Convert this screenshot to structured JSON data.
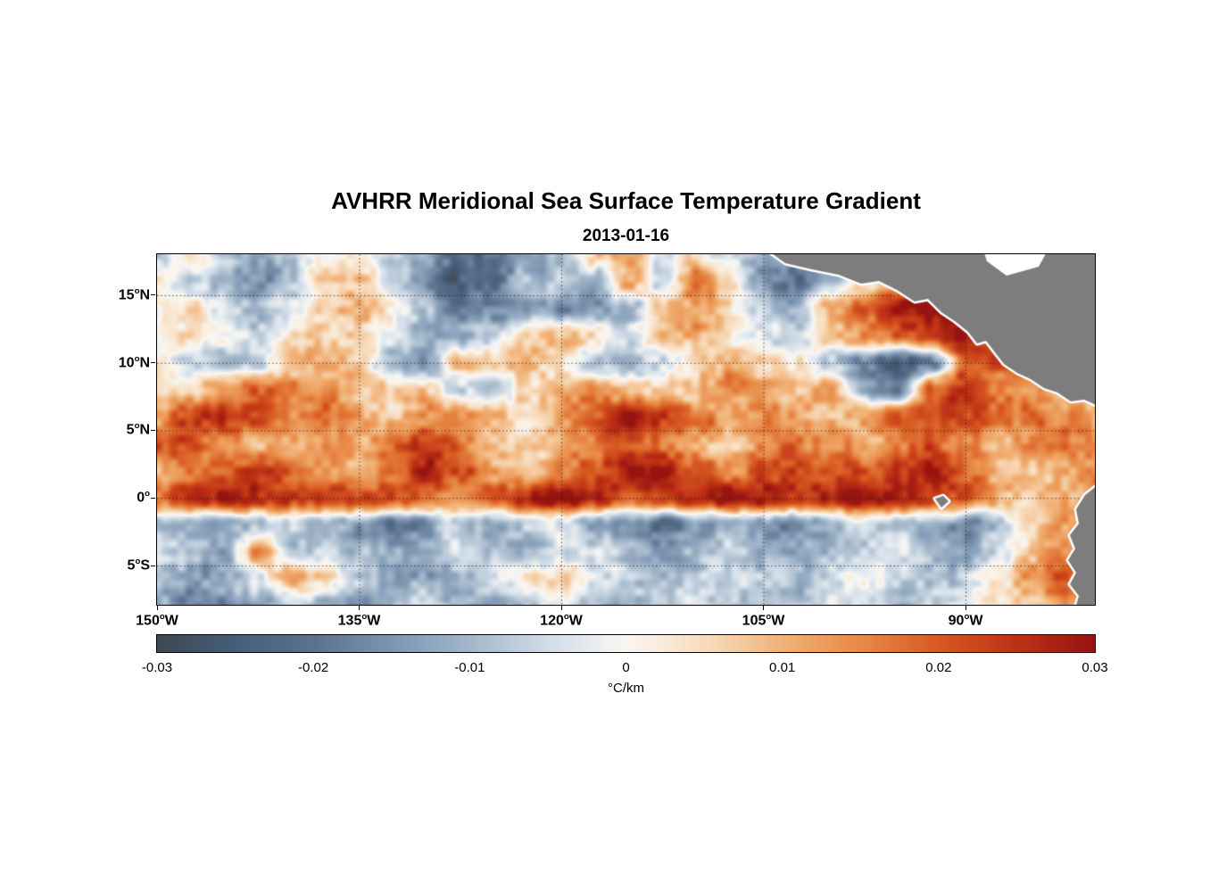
{
  "title": "AVHRR Meridional Sea Surface Temperature Gradient",
  "subtitle_date": "2013-01-16",
  "colorbar": {
    "label": "°C/km"
  },
  "chart_data": {
    "type": "heatmap",
    "title": "AVHRR Meridional Sea Surface Temperature Gradient",
    "subtitle": "2013-01-16",
    "units": "°C/km",
    "lon_range": [
      -150,
      -80.4
    ],
    "lat_range": [
      -7.9,
      18.03
    ],
    "value_range": [
      -0.03,
      0.03
    ],
    "x_ticks": [
      {
        "label": "150°W",
        "lon": -150
      },
      {
        "label": "135°W",
        "lon": -135
      },
      {
        "label": "120°W",
        "lon": -120
      },
      {
        "label": "105°W",
        "lon": -105
      },
      {
        "label": "90°W",
        "lon": -90
      }
    ],
    "y_ticks": [
      {
        "label": "15°N",
        "lat": 15
      },
      {
        "label": "10°N",
        "lat": 10
      },
      {
        "label": "5°N",
        "lat": 5
      },
      {
        "label": "0°",
        "lat": 0
      },
      {
        "label": "5°S",
        "lat": -5
      }
    ],
    "grid_lons": [
      -135,
      -120,
      -105,
      -90
    ],
    "grid_lats": [
      15,
      10,
      5,
      0,
      -5
    ],
    "colorbar_ticks": [
      -0.03,
      -0.02,
      -0.01,
      0,
      0.01,
      0.02,
      0.03
    ],
    "colormap_stops": [
      {
        "t": 0.0,
        "c": "#3e4852"
      },
      {
        "t": 0.09,
        "c": "#47607c"
      },
      {
        "t": 0.167,
        "c": "#5c728d"
      },
      {
        "t": 0.28,
        "c": "#8aa2bc"
      },
      {
        "t": 0.333,
        "c": "#a3b7ca"
      },
      {
        "t": 0.42,
        "c": "#d3dee8"
      },
      {
        "t": 0.48,
        "c": "#f0f2f3"
      },
      {
        "t": 0.5,
        "c": "#f9f6f1"
      },
      {
        "t": 0.54,
        "c": "#f9ecdc"
      },
      {
        "t": 0.6,
        "c": "#f6d6b3"
      },
      {
        "t": 0.667,
        "c": "#f1b277"
      },
      {
        "t": 0.75,
        "c": "#e88a47"
      },
      {
        "t": 0.833,
        "c": "#d85a22"
      },
      {
        "t": 0.92,
        "c": "#bc3015"
      },
      {
        "t": 1.0,
        "c": "#971410"
      }
    ],
    "lon_grid": [
      -150,
      -147.5,
      -145,
      -142.5,
      -140,
      -137.5,
      -135,
      -132.5,
      -130,
      -127.5,
      -125,
      -122.5,
      -120,
      -117.5,
      -115,
      -112.5,
      -110,
      -107.5,
      -105,
      -102.5,
      -100,
      -97.5,
      -95,
      -92.5,
      -90,
      -87.5,
      -85,
      -82.5,
      -80
    ],
    "lat_grid": [
      18,
      16,
      14,
      12,
      10,
      8,
      6,
      4,
      2,
      0,
      -2,
      -4,
      -6,
      -8
    ],
    "values": [
      [
        -0.004,
        0.002,
        -0.008,
        -0.015,
        -0.008,
        0.002,
        0.004,
        -0.004,
        -0.012,
        -0.02,
        -0.022,
        -0.016,
        -0.008,
        0.006,
        0.01,
        -0.004,
        0.006,
        -0.006,
        -0.012,
        -0.018,
        -0.008,
        0,
        0,
        0,
        0,
        0,
        0,
        0,
        0
      ],
      [
        0.003,
        -0.005,
        -0.012,
        -0.018,
        -0.01,
        0.004,
        0.006,
        -0.008,
        -0.018,
        -0.025,
        -0.02,
        -0.01,
        -0.005,
        -0.014,
        0.012,
        -0.006,
        0.02,
        0.006,
        -0.015,
        -0.022,
        -0.008,
        0.006,
        0.012,
        0.01,
        0,
        0,
        0,
        0,
        0
      ],
      [
        0.002,
        0.004,
        -0.006,
        -0.01,
        -0.004,
        0.006,
        0.01,
        0.004,
        -0.01,
        -0.02,
        -0.015,
        -0.012,
        -0.015,
        -0.015,
        -0.012,
        0.006,
        0.012,
        0.005,
        -0.008,
        -0.01,
        0.012,
        0.02,
        0.026,
        0.03,
        0.028,
        0.016,
        0.008,
        0.005,
        0.004
      ],
      [
        0.003,
        0.005,
        0.002,
        -0.004,
        0.003,
        0.008,
        0.005,
        -0.004,
        -0.014,
        -0.012,
        -0.006,
        0.006,
        0.01,
        0.004,
        -0.006,
        0.008,
        0.01,
        0.004,
        -0.005,
        -0.008,
        0.008,
        0.014,
        0.018,
        0.024,
        0.03,
        0.022,
        0.01,
        0.006,
        0.004
      ],
      [
        0.004,
        -0.006,
        -0.01,
        -0.004,
        0.008,
        0.012,
        0.006,
        -0.012,
        -0.015,
        0.01,
        0.004,
        0.008,
        0.004,
        -0.008,
        -0.01,
        -0.004,
        0.006,
        0.01,
        0.008,
        0.004,
        -0.008,
        -0.018,
        -0.026,
        -0.02,
        0.018,
        0.022,
        0.012,
        0.008,
        0.01
      ],
      [
        0.002,
        0.006,
        0.015,
        0.02,
        0.018,
        0.012,
        0.006,
        0.01,
        0.006,
        -0.006,
        -0.01,
        0.004,
        0.01,
        0.015,
        0.01,
        0.006,
        0.01,
        0.015,
        0.012,
        0.008,
        0.012,
        -0.012,
        -0.018,
        0.02,
        0.024,
        0.016,
        0.014,
        0.01,
        0.008
      ],
      [
        0.012,
        0.022,
        0.026,
        0.02,
        0.012,
        0.018,
        0.01,
        0.006,
        0.014,
        0.016,
        0.008,
        0.006,
        0.012,
        0.02,
        0.028,
        0.026,
        0.018,
        0.01,
        0.016,
        0.012,
        0.008,
        0.014,
        0.02,
        0.024,
        0.022,
        0.018,
        0.02,
        0.016,
        0.01
      ],
      [
        0.024,
        0.02,
        0.012,
        0.008,
        0.01,
        0.014,
        0.01,
        0.02,
        0.024,
        0.018,
        0.008,
        0.006,
        0.01,
        0.016,
        0.022,
        0.018,
        0.012,
        0.008,
        0.012,
        0.018,
        0.014,
        0.01,
        0.016,
        0.02,
        0.014,
        0.01,
        0.014,
        0.018,
        0.012
      ],
      [
        0.012,
        0.016,
        0.02,
        0.024,
        0.02,
        0.014,
        0.01,
        0.018,
        0.028,
        0.022,
        0.012,
        0.008,
        0.014,
        0.022,
        0.026,
        0.03,
        0.022,
        0.014,
        0.02,
        0.026,
        0.022,
        0.018,
        0.024,
        0.028,
        0.02,
        0.012,
        0.008,
        0.01,
        0.014
      ],
      [
        0.02,
        0.026,
        0.028,
        0.024,
        0.026,
        0.028,
        0.026,
        0.022,
        0.018,
        0.014,
        0.022,
        0.028,
        0.03,
        0.026,
        0.02,
        0.024,
        0.028,
        0.03,
        0.028,
        0.024,
        0.028,
        0.03,
        0.026,
        0.022,
        0.018,
        0.012,
        0.008,
        0.012,
        0.02
      ],
      [
        -0.006,
        -0.01,
        -0.014,
        -0.008,
        -0.004,
        -0.01,
        -0.016,
        -0.02,
        -0.014,
        -0.008,
        -0.012,
        -0.008,
        -0.004,
        -0.01,
        -0.018,
        -0.022,
        -0.016,
        -0.01,
        -0.014,
        -0.018,
        -0.012,
        -0.006,
        -0.01,
        -0.014,
        -0.018,
        -0.01,
        0.004,
        0.014,
        0.02
      ],
      [
        -0.004,
        -0.008,
        -0.012,
        0.014,
        -0.01,
        -0.004,
        -0.008,
        -0.012,
        -0.008,
        -0.004,
        -0.008,
        -0.012,
        -0.006,
        -0.004,
        -0.01,
        -0.014,
        -0.01,
        -0.006,
        -0.01,
        -0.014,
        -0.01,
        -0.006,
        -0.004,
        -0.008,
        -0.012,
        -0.006,
        0.006,
        0.016,
        0.022
      ],
      [
        -0.01,
        -0.014,
        -0.01,
        -0.004,
        0.01,
        0.004,
        -0.006,
        -0.01,
        -0.012,
        -0.008,
        -0.004,
        0.004,
        0.006,
        -0.004,
        -0.008,
        -0.012,
        -0.008,
        -0.004,
        -0.006,
        -0.01,
        -0.006,
        -0.002,
        -0.006,
        -0.01,
        -0.006,
        0.004,
        0.012,
        0.02,
        0.024
      ],
      [
        -0.012,
        -0.018,
        -0.02,
        -0.014,
        -0.006,
        -0.012,
        -0.016,
        -0.01,
        -0.006,
        -0.01,
        -0.014,
        -0.008,
        -0.004,
        -0.008,
        -0.012,
        -0.008,
        -0.004,
        -0.008,
        -0.012,
        -0.008,
        -0.004,
        -0.006,
        -0.01,
        -0.006,
        -0.002,
        0.004,
        0.008,
        0.014,
        0.02
      ]
    ],
    "land": {
      "fill": "#7d7d7d",
      "halo": "#ffffff",
      "polygons": [
        {
          "name": "central-america",
          "type": "land",
          "pts": [
            [
              679,
              -8
            ],
            [
              704,
              10
            ],
            [
              734,
              17
            ],
            [
              764,
              23
            ],
            [
              789,
              33
            ],
            [
              809,
              30
            ],
            [
              829,
              40
            ],
            [
              849,
              53
            ],
            [
              864,
              50
            ],
            [
              879,
              65
            ],
            [
              894,
              75
            ],
            [
              909,
              87
            ],
            [
              919,
              100
            ],
            [
              929,
              97
            ],
            [
              939,
              110
            ],
            [
              949,
              123
            ],
            [
              964,
              133
            ],
            [
              979,
              140
            ],
            [
              994,
              150
            ],
            [
              1009,
              155
            ],
            [
              1024,
              165
            ],
            [
              1039,
              163
            ],
            [
              1059,
              172
            ],
            [
              1059,
              -8
            ]
          ]
        },
        {
          "name": "caribbean-nodata",
          "type": "nodata",
          "pts": [
            [
              925,
              -8
            ],
            [
              1000,
              -8
            ],
            [
              988,
              14
            ],
            [
              952,
              24
            ],
            [
              930,
              8
            ]
          ]
        },
        {
          "name": "south-america",
          "type": "land",
          "pts": [
            [
              1059,
              255
            ],
            [
              1040,
              270
            ],
            [
              1030,
              286
            ],
            [
              1033,
              302
            ],
            [
              1023,
              315
            ],
            [
              1029,
              330
            ],
            [
              1021,
              343
            ],
            [
              1030,
              357
            ],
            [
              1023,
              370
            ],
            [
              1033,
              383
            ],
            [
              1028,
              401
            ],
            [
              1059,
              401
            ]
          ]
        },
        {
          "name": "galapagos",
          "type": "land",
          "pts": [
            [
              872,
              274
            ],
            [
              881,
              271
            ],
            [
              887,
              277
            ],
            [
              879,
              284
            ]
          ]
        }
      ]
    }
  }
}
